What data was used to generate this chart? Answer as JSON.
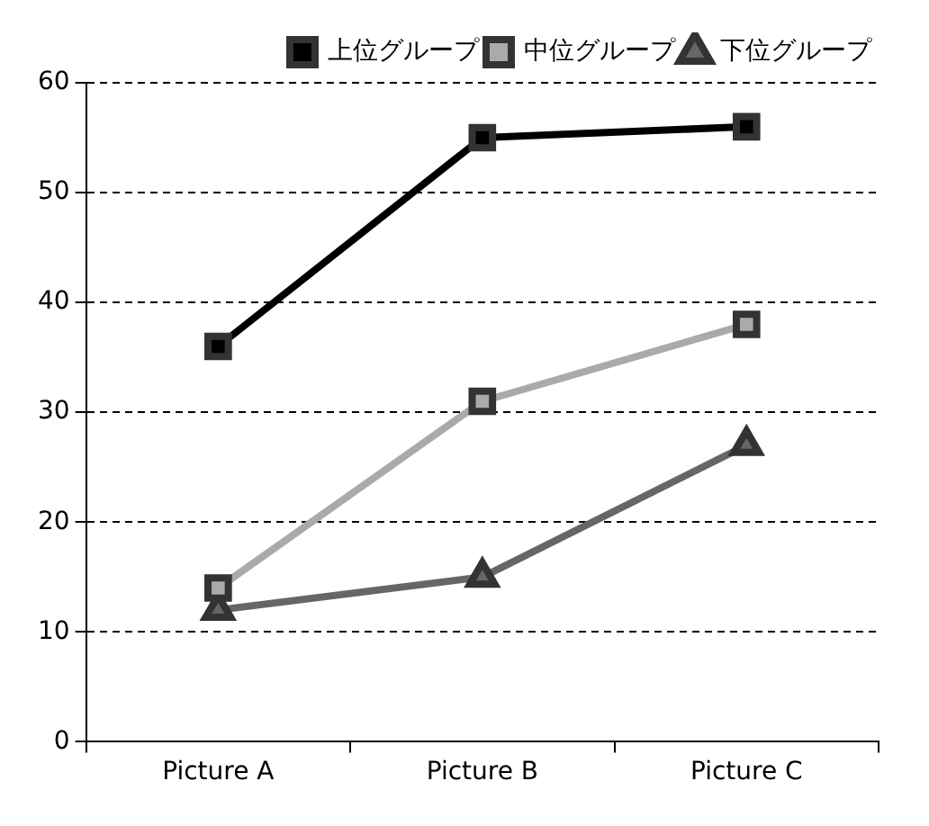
{
  "chart_data": {
    "type": "line",
    "categories": [
      "Picture A",
      "Picture B",
      "Picture C"
    ],
    "series": [
      {
        "name": "上位グループ",
        "color": "#000000",
        "marker": "square",
        "values": [
          36,
          55,
          56
        ]
      },
      {
        "name": "中位グループ",
        "color": "#aaaaaa",
        "marker": "square",
        "values": [
          14,
          31,
          38
        ]
      },
      {
        "name": "下位グループ",
        "color": "#666666",
        "marker": "triangle",
        "values": [
          12,
          15,
          27
        ]
      }
    ],
    "ylim": [
      0,
      60
    ],
    "yticks": [
      0,
      10,
      20,
      30,
      40,
      50,
      60
    ],
    "grid": "y",
    "line_style": "solid",
    "legend": "top right"
  }
}
